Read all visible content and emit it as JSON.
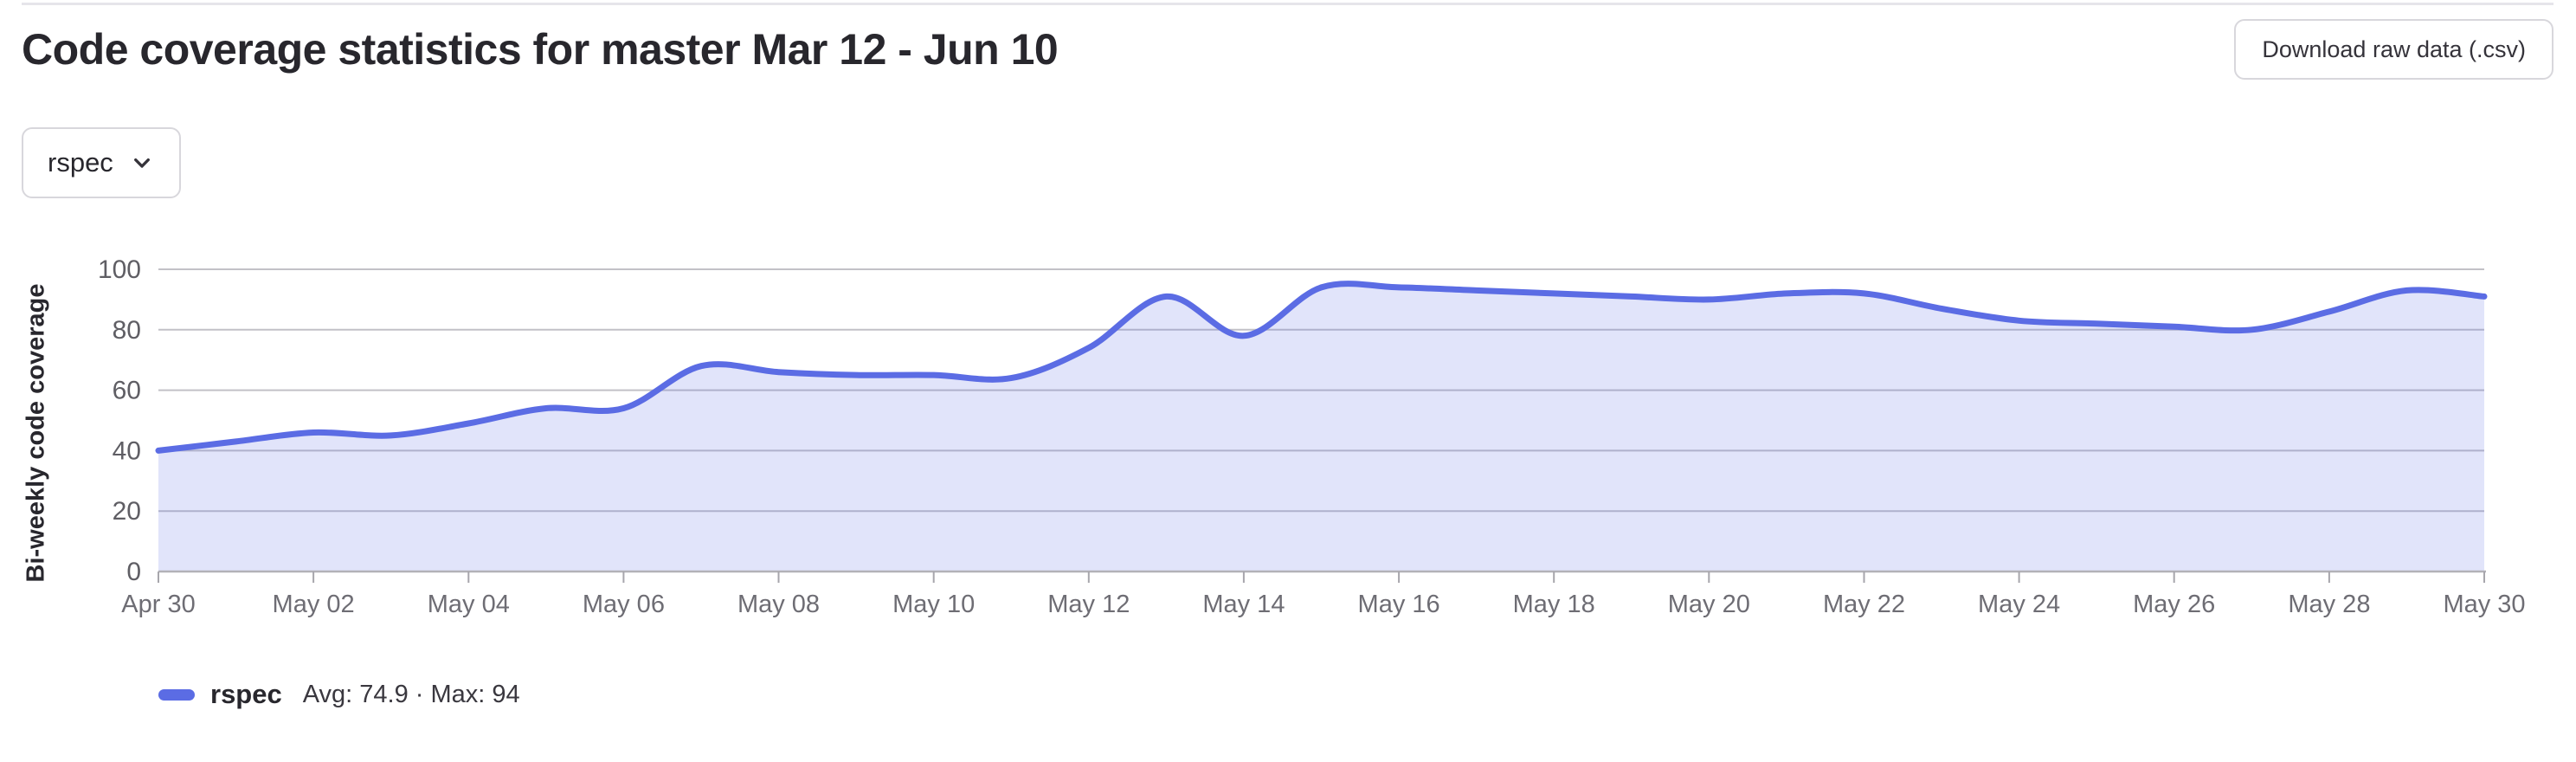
{
  "header": {
    "title": "Code coverage statistics for master Mar 12 - Jun 10",
    "download_button_label": "Download raw data (.csv)"
  },
  "filter": {
    "selected_job": "rspec"
  },
  "chart_data": {
    "type": "area",
    "ylabel": "Bi-weekly code coverage",
    "xlabel": "",
    "ylim": [
      0,
      100
    ],
    "y_ticks": [
      0,
      20,
      40,
      60,
      80,
      100
    ],
    "x_tick_step": 2,
    "grid": true,
    "smooth": true,
    "legend_position": "bottom-left",
    "line_color": "#5b6ce4",
    "fill_color": "rgba(91,108,228,0.18)",
    "x": [
      "Apr 30",
      "May 01",
      "May 02",
      "May 03",
      "May 04",
      "May 05",
      "May 06",
      "May 07",
      "May 08",
      "May 09",
      "May 10",
      "May 11",
      "May 12",
      "May 13",
      "May 14",
      "May 15",
      "May 16",
      "May 17",
      "May 18",
      "May 19",
      "May 20",
      "May 21",
      "May 22",
      "May 23",
      "May 24",
      "May 25",
      "May 26",
      "May 27",
      "May 28",
      "May 29",
      "May 30"
    ],
    "series": [
      {
        "name": "rspec",
        "values": [
          40,
          43,
          46,
          45,
          49,
          54,
          54,
          68,
          66,
          65,
          65,
          64,
          74,
          91,
          78,
          94,
          94,
          93,
          92,
          91,
          90,
          92,
          92,
          87,
          83,
          82,
          81,
          80,
          86,
          93,
          91
        ]
      }
    ]
  },
  "legend": {
    "series_label": "rspec",
    "stats": "Avg: 74.9 · Max: 94",
    "avg": 74.9,
    "max": 94
  }
}
